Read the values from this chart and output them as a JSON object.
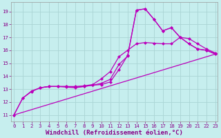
{
  "background_color": "#c6eeee",
  "grid_color": "#aad4d4",
  "line_color": "#bb00bb",
  "marker": "D",
  "markersize": 2.0,
  "linewidth": 0.9,
  "xlabel": "Windchill (Refroidissement éolien,°C)",
  "xlabel_fontsize": 6.5,
  "ytick_labels": [
    "11",
    "12",
    "13",
    "14",
    "15",
    "16",
    "17",
    "18",
    "19"
  ],
  "yticks": [
    11,
    12,
    13,
    14,
    15,
    16,
    17,
    18,
    19
  ],
  "xticks": [
    0,
    1,
    2,
    3,
    4,
    5,
    6,
    7,
    8,
    9,
    10,
    11,
    12,
    13,
    14,
    15,
    16,
    17,
    18,
    19,
    20,
    21,
    22,
    23
  ],
  "xlim": [
    -0.3,
    23.3
  ],
  "ylim": [
    10.5,
    19.7
  ],
  "curves": [
    {
      "x": [
        0,
        1,
        2,
        3,
        4,
        5,
        6,
        7,
        8,
        9,
        10,
        11,
        12,
        13,
        14,
        15,
        16,
        17,
        18,
        19,
        20,
        21,
        22,
        23
      ],
      "y": [
        11,
        12.3,
        12.8,
        13.1,
        13.2,
        13.2,
        13.2,
        13.15,
        13.2,
        13.3,
        13.35,
        13.55,
        14.5,
        15.6,
        19.1,
        19.2,
        18.4,
        17.5,
        17.75,
        17.0,
        16.5,
        16.1,
        16.0,
        15.75
      ],
      "has_marker": true
    },
    {
      "x": [
        0,
        1,
        2,
        3,
        4,
        5,
        6,
        7,
        8,
        9,
        10,
        11,
        12,
        13,
        14,
        15,
        16,
        17,
        18,
        19,
        20,
        21,
        22,
        23
      ],
      "y": [
        11,
        12.3,
        12.85,
        13.1,
        13.2,
        13.2,
        13.15,
        13.1,
        13.2,
        13.3,
        13.45,
        13.75,
        14.9,
        15.55,
        19.1,
        19.2,
        18.4,
        17.5,
        17.75,
        17.0,
        16.5,
        16.1,
        16.0,
        15.7
      ],
      "has_marker": true
    },
    {
      "x": [
        3,
        4,
        5,
        6,
        7,
        8,
        9,
        10,
        11,
        12,
        13,
        14,
        15,
        16,
        17,
        18,
        19,
        20,
        21,
        22,
        23
      ],
      "y": [
        13.1,
        13.2,
        13.2,
        13.2,
        13.2,
        13.25,
        13.35,
        13.8,
        14.35,
        15.5,
        16.0,
        16.5,
        16.6,
        16.55,
        16.5,
        16.5,
        17.0,
        16.9,
        16.5,
        16.1,
        15.8
      ],
      "has_marker": true
    },
    {
      "x": [
        0,
        23
      ],
      "y": [
        11,
        15.7
      ],
      "has_marker": false
    }
  ]
}
